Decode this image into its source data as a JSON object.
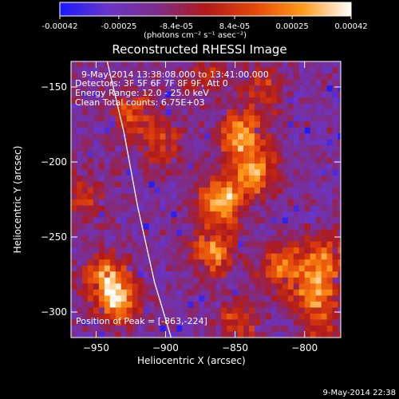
{
  "colorbar": {
    "ticks": [
      "-0.00042",
      "-0.00025",
      "-8.4e-05",
      "8.4e-05",
      "0.00025",
      "0.00042"
    ],
    "units": "(photons cm⁻² s⁻¹ asec⁻²)",
    "stops": [
      "#1a1aff",
      "#6a35c8",
      "#7d2d8a",
      "#b01a1a",
      "#e4460a",
      "#ff9a1a",
      "#ffffff"
    ],
    "range": [
      -0.00042,
      0.00042
    ]
  },
  "chart_data": {
    "type": "heatmap",
    "title": "Reconstructed RHESSI Image",
    "xlabel": "Heliocentric X (arcsec)",
    "ylabel": "Heliocentric Y (arcsec)",
    "xlim": [
      -968,
      -774
    ],
    "ylim": [
      -317,
      -133
    ],
    "x_ticks": [
      -950,
      -900,
      -850,
      -800
    ],
    "y_ticks": [
      -150,
      -200,
      -250,
      -300
    ],
    "x_tick_labels": [
      "−950",
      "−900",
      "−850",
      "−800"
    ],
    "y_tick_labels": [
      "−150",
      "−200",
      "−250",
      "−300"
    ],
    "grid": false,
    "annotations": {
      "time": "9-May-2014 13:38:08.000 to 13:41:00.000",
      "detectors": "Detectors: 3F 5F 6F 7F 8F 9F, Att 0",
      "energy": "Energy Range: 12.0 - 25.0 keV",
      "clean": "Clean    Total counts: 6.75E+03",
      "peak": "Position of Peak = [-863,-224]"
    },
    "limb_curve": [
      [
        -942,
        -133
      ],
      [
        -930,
        -180
      ],
      [
        -920,
        -230
      ],
      [
        -908,
        -280
      ],
      [
        -896,
        -317
      ]
    ],
    "emission_sources": [
      {
        "x": -862,
        "y": -224,
        "peak": 1.0
      },
      {
        "x": -848,
        "y": -180,
        "peak": 0.85
      },
      {
        "x": -838,
        "y": -205,
        "peak": 0.8
      },
      {
        "x": -868,
        "y": -258,
        "peak": 0.8
      },
      {
        "x": -945,
        "y": -275,
        "peak": 0.85
      },
      {
        "x": -935,
        "y": -292,
        "peak": 0.75
      },
      {
        "x": -818,
        "y": -268,
        "peak": 0.7
      },
      {
        "x": -795,
        "y": -285,
        "peak": 0.8
      },
      {
        "x": -788,
        "y": -262,
        "peak": 0.7
      },
      {
        "x": -925,
        "y": -165,
        "peak": 0.55
      },
      {
        "x": -905,
        "y": -185,
        "peak": 0.45
      },
      {
        "x": -960,
        "y": -220,
        "peak": 0.4
      },
      {
        "x": -830,
        "y": -150,
        "peak": 0.45
      },
      {
        "x": -850,
        "y": -305,
        "peak": 0.5
      },
      {
        "x": -790,
        "y": -310,
        "peak": 0.4
      },
      {
        "x": -875,
        "y": -140,
        "peak": 0.4
      }
    ]
  },
  "footer": {
    "timestamp": "9-May-2014 22:38"
  }
}
